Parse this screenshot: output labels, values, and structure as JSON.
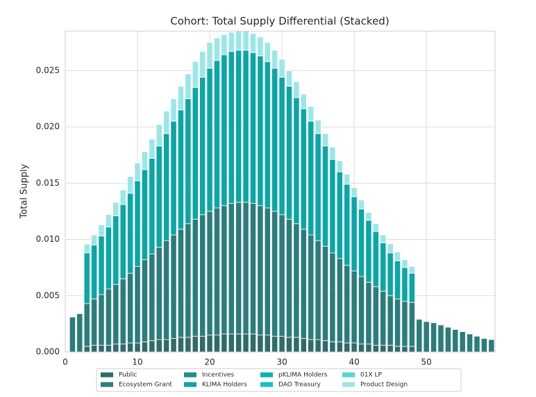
{
  "chart_data": {
    "type": "stacked_bar",
    "title": "Cohort: Total Supply Differential (Stacked)",
    "ylabel": "Total Supply",
    "x": [
      1,
      2,
      3,
      4,
      5,
      6,
      7,
      8,
      9,
      10,
      11,
      12,
      13,
      14,
      15,
      16,
      17,
      18,
      19,
      20,
      21,
      22,
      23,
      24,
      25,
      26,
      27,
      28,
      29,
      30,
      31,
      32,
      33,
      34,
      35,
      36,
      37,
      38,
      39,
      40,
      41,
      42,
      43,
      44,
      45,
      46,
      47,
      48,
      49,
      50,
      51,
      52,
      53,
      54,
      55,
      56,
      57,
      58,
      59
    ],
    "xlim": [
      0,
      59.5
    ],
    "xticks": [
      0,
      10,
      20,
      30,
      40,
      50
    ],
    "ylim": [
      0,
      0.0285
    ],
    "yticks": [
      {
        "value": 0,
        "label": "0.000"
      },
      0.005,
      {
        "value": 0.01,
        "label": "0.010"
      },
      0.015,
      {
        "value": 0.02,
        "label": "0.020"
      },
      0.025
    ],
    "grid": true,
    "legend": "lower center",
    "series": [
      {
        "name": "Public",
        "color": "#2f6b6b",
        "values": [
          0,
          0,
          0.0005,
          0.0006,
          0.0006,
          0.0006,
          0.0007,
          0.0007,
          0.0008,
          0.0008,
          0.0009,
          0.001,
          0.0011,
          0.0011,
          0.0012,
          0.0013,
          0.0013,
          0.0014,
          0.0014,
          0.0015,
          0.0015,
          0.0016,
          0.0016,
          0.0016,
          0.0016,
          0.0016,
          0.0015,
          0.0015,
          0.0014,
          0.0014,
          0.0013,
          0.0013,
          0.0012,
          0.0011,
          0.0011,
          0.001,
          0.0009,
          0.0009,
          0.0008,
          0.0008,
          0.0007,
          0.0007,
          0.0006,
          0.0006,
          0.0006,
          0.0005,
          0.0005,
          0.0005,
          0,
          0,
          0,
          0,
          0,
          0,
          0,
          0,
          0,
          0,
          0
        ]
      },
      {
        "name": "Ecosystem Grant",
        "color": "#2b7d7b",
        "values": [
          0.0031,
          0.0034,
          0.0038,
          0.0041,
          0.0045,
          0.005,
          0.0053,
          0.0058,
          0.0062,
          0.0068,
          0.0073,
          0.0077,
          0.0082,
          0.0088,
          0.0092,
          0.0096,
          0.0101,
          0.0104,
          0.0108,
          0.011,
          0.0113,
          0.0114,
          0.0116,
          0.0117,
          0.0117,
          0.0116,
          0.0115,
          0.0113,
          0.0111,
          0.0108,
          0.0105,
          0.0101,
          0.0097,
          0.0093,
          0.0088,
          0.0084,
          0.0079,
          0.0074,
          0.0069,
          0.0064,
          0.006,
          0.0055,
          0.0052,
          0.0048,
          0.0044,
          0.0042,
          0.004,
          0.0039,
          0.0029,
          0.0027,
          0.0026,
          0.0024,
          0.0022,
          0.002,
          0.0018,
          0.0016,
          0.0014,
          0.0012,
          0.0011
        ]
      },
      {
        "name": "Incentives",
        "color": "#1b8f8d",
        "values": [
          0,
          0,
          0,
          0,
          0,
          0,
          0,
          0,
          0,
          0,
          0,
          0,
          0,
          0,
          0,
          0,
          0,
          0,
          0,
          0,
          0,
          0,
          0,
          0,
          0,
          0,
          0,
          0,
          0,
          0,
          0,
          0,
          0,
          0,
          0,
          0,
          0,
          0,
          0,
          0,
          0,
          0,
          0,
          0,
          0,
          0,
          0,
          0,
          0,
          0,
          0,
          0,
          0,
          0,
          0,
          0,
          0,
          0,
          0
        ]
      },
      {
        "name": "KLIMA Holders",
        "color": "#0ba6a6",
        "values": [
          0,
          0,
          0.0045,
          0.0048,
          0.0052,
          0.0055,
          0.0061,
          0.0066,
          0.0071,
          0.0076,
          0.008,
          0.0085,
          0.009,
          0.0095,
          0.0101,
          0.0106,
          0.0111,
          0.0117,
          0.0122,
          0.0127,
          0.0131,
          0.0134,
          0.0135,
          0.0135,
          0.0135,
          0.0134,
          0.0133,
          0.013,
          0.0127,
          0.0122,
          0.0118,
          0.0112,
          0.0107,
          0.0101,
          0.0095,
          0.0089,
          0.0083,
          0.0077,
          0.0072,
          0.0066,
          0.006,
          0.0055,
          0.0049,
          0.0043,
          0.0038,
          0.0034,
          0.003,
          0.0026,
          0,
          0,
          0,
          0,
          0,
          0,
          0,
          0,
          0,
          0,
          0
        ]
      },
      {
        "name": "pKLIMA Holders",
        "color": "#06b3b1",
        "values": [
          0,
          0,
          0,
          0,
          0,
          0,
          0,
          0,
          0,
          0,
          0,
          0,
          0,
          0,
          0,
          0,
          0,
          0,
          0,
          0,
          0,
          0,
          0,
          0,
          0,
          0,
          0,
          0,
          0,
          0,
          0,
          0,
          0,
          0,
          0,
          0,
          0,
          0,
          0,
          0,
          0,
          0,
          0,
          0,
          0,
          0,
          0,
          0,
          0,
          0,
          0,
          0,
          0,
          0,
          0,
          0,
          0,
          0,
          0
        ]
      },
      {
        "name": "DAO Treasury",
        "color": "#12c2c2",
        "values": [
          0,
          0,
          0,
          0,
          0,
          0,
          0,
          0,
          0,
          0,
          0,
          0,
          0,
          0,
          0,
          0,
          0,
          0,
          0,
          0,
          0,
          0,
          0,
          0,
          0,
          0,
          0,
          0,
          0,
          0,
          0,
          0,
          0,
          0,
          0,
          0,
          0,
          0,
          0,
          0,
          0,
          0,
          0,
          0,
          0,
          0,
          0,
          0,
          0,
          0,
          0,
          0,
          0,
          0,
          0,
          0,
          0,
          0,
          0
        ]
      },
      {
        "name": "01X  LP",
        "color": "#52d6d6",
        "values": [
          0,
          0,
          0,
          0,
          0,
          0,
          0,
          0,
          0,
          0,
          0,
          0,
          0,
          0,
          0,
          0,
          0,
          0,
          0,
          0,
          0,
          0,
          0,
          0,
          0,
          0,
          0,
          0,
          0,
          0,
          0,
          0,
          0,
          0,
          0,
          0,
          0,
          0,
          0,
          0,
          0,
          0,
          0,
          0,
          0,
          0,
          0,
          0,
          0,
          0,
          0,
          0,
          0,
          0,
          0,
          0,
          0,
          0,
          0
        ]
      },
      {
        "name": "Product Design",
        "color": "#9be7e7",
        "values": [
          0,
          0,
          0.0008,
          0.0009,
          0.001,
          0.0011,
          0.0012,
          0.0013,
          0.0015,
          0.0016,
          0.0016,
          0.0017,
          0.0019,
          0.002,
          0.002,
          0.0021,
          0.0022,
          0.0023,
          0.0023,
          0.0023,
          0.002,
          0.0018,
          0.0017,
          0.0017,
          0.0017,
          0.0017,
          0.0017,
          0.0017,
          0.0016,
          0.0016,
          0.0014,
          0.0014,
          0.0013,
          0.0013,
          0.0012,
          0.0011,
          0.0011,
          0.001,
          0.0009,
          0.0008,
          0.0008,
          0.0007,
          0.0007,
          0.0007,
          0.0008,
          0.0008,
          0.0007,
          0.0006,
          0,
          0,
          0,
          0,
          0,
          0,
          0,
          0,
          0,
          0,
          0
        ]
      }
    ]
  }
}
